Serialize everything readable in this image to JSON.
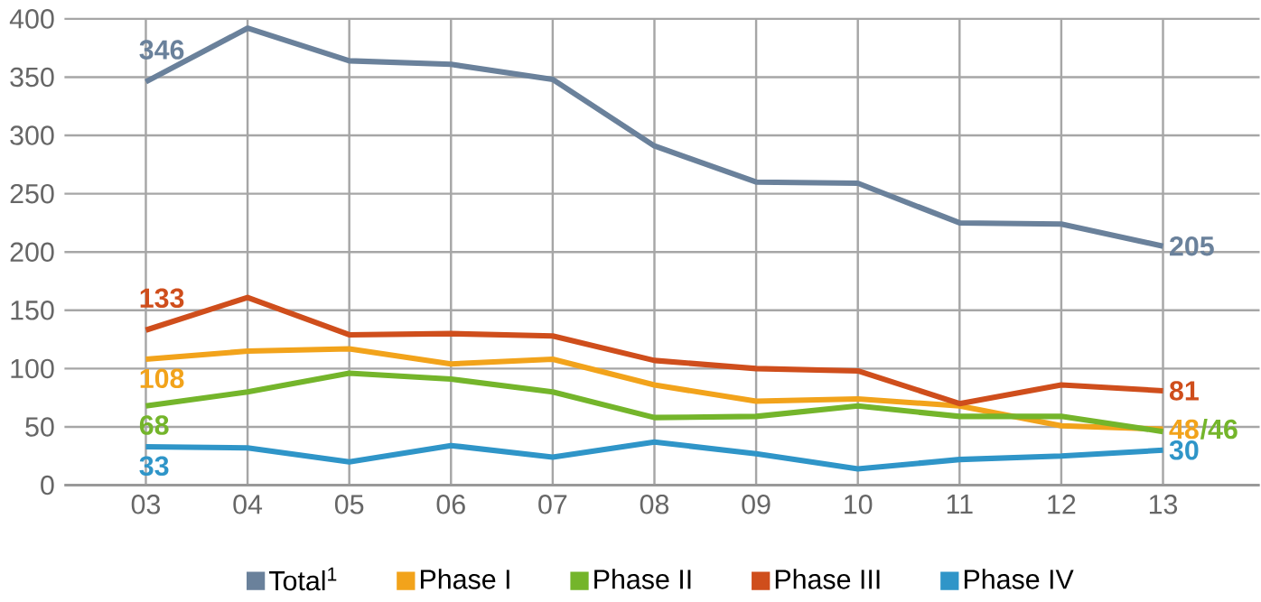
{
  "chart_data": {
    "type": "line",
    "categories": [
      "03",
      "04",
      "05",
      "06",
      "07",
      "08",
      "09",
      "10",
      "11",
      "12",
      "13"
    ],
    "series": [
      {
        "name": "Total$^{1}$",
        "color": "#6a819b",
        "values": [
          346,
          392,
          364,
          361,
          348,
          291,
          260,
          259,
          225,
          224,
          205
        ],
        "value_labels": [
          "346",
          null,
          null,
          null,
          null,
          null,
          null,
          null,
          null,
          null,
          "205"
        ]
      },
      {
        "name": "Phase I",
        "color": "#f2a31b",
        "values": [
          108,
          115,
          117,
          104,
          108,
          86,
          72,
          74,
          68,
          51,
          48
        ],
        "value_labels": [
          "108",
          null,
          null,
          null,
          null,
          null,
          null,
          null,
          null,
          null,
          "48"
        ]
      },
      {
        "name": "Phase II",
        "color": "#74b52b",
        "values": [
          68,
          80,
          96,
          91,
          80,
          58,
          59,
          68,
          59,
          59,
          46
        ],
        "value_labels": [
          "68",
          null,
          null,
          null,
          null,
          null,
          null,
          null,
          null,
          null,
          "/46"
        ]
      },
      {
        "name": "Phase III",
        "color": "#cf4e1c",
        "values": [
          133,
          161,
          129,
          130,
          128,
          107,
          100,
          98,
          70,
          86,
          81
        ],
        "value_labels": [
          "133",
          null,
          null,
          null,
          null,
          null,
          null,
          null,
          null,
          null,
          "81"
        ]
      },
      {
        "name": "Phase IV",
        "color": "#2f95c8",
        "values": [
          33,
          32,
          20,
          34,
          24,
          37,
          27,
          14,
          22,
          25,
          30
        ],
        "value_labels": [
          "33",
          null,
          null,
          null,
          null,
          null,
          null,
          null,
          null,
          null,
          "30"
        ]
      }
    ],
    "ylim": [
      0,
      400
    ],
    "yticks": [
      0,
      50,
      100,
      150,
      200,
      250,
      300,
      350,
      400
    ],
    "grid": true,
    "legend": "bottom",
    "marker": "none",
    "line_style": "solid"
  }
}
